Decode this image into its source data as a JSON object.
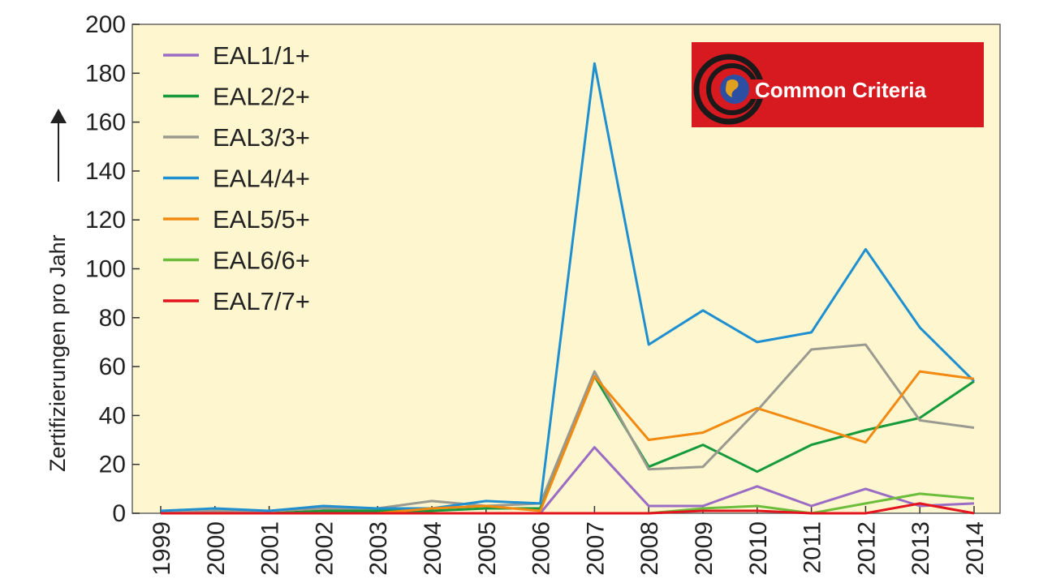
{
  "chart_data": {
    "type": "line",
    "title": "",
    "xlabel": "",
    "ylabel": "Zertifizierungen pro Jahr",
    "ylim": [
      0,
      200
    ],
    "yticks": [
      0,
      20,
      40,
      60,
      80,
      100,
      120,
      140,
      160,
      180,
      200
    ],
    "x": [
      "1999",
      "2000",
      "2001",
      "2002",
      "2003",
      "2004",
      "2005",
      "2006",
      "2007",
      "2008",
      "2009",
      "2010",
      "2011",
      "2012",
      "2013",
      "2014"
    ],
    "grid": false,
    "legend_position": "top-left",
    "background_color": "#fdf6cf",
    "series": [
      {
        "name": "EAL1/1+",
        "color": "#9b6cc4",
        "values": [
          0,
          0,
          0,
          0,
          0,
          0,
          0,
          0,
          27,
          3,
          3,
          11,
          3,
          10,
          3,
          4
        ]
      },
      {
        "name": "EAL2/2+",
        "color": "#159a3c",
        "values": [
          0,
          0,
          0,
          1,
          1,
          1,
          2,
          2,
          56,
          19,
          28,
          17,
          28,
          34,
          39,
          54
        ]
      },
      {
        "name": "EAL3/3+",
        "color": "#9a9a90",
        "values": [
          0,
          1,
          1,
          2,
          2,
          5,
          3,
          4,
          58,
          18,
          19,
          42,
          67,
          69,
          38,
          35
        ]
      },
      {
        "name": "EAL4/4+",
        "color": "#1f8fd0",
        "values": [
          1,
          2,
          1,
          3,
          2,
          2,
          5,
          4,
          184,
          69,
          83,
          70,
          74,
          108,
          76,
          54
        ]
      },
      {
        "name": "EAL5/5+",
        "color": "#f28a12",
        "values": [
          0,
          0,
          0,
          0,
          0,
          2,
          3,
          1,
          56,
          30,
          33,
          43,
          36,
          29,
          58,
          55
        ]
      },
      {
        "name": "EAL6/6+",
        "color": "#6cbd3c",
        "values": [
          0,
          0,
          0,
          0,
          0,
          0,
          0,
          0,
          0,
          0,
          2,
          3,
          0,
          4,
          8,
          6
        ]
      },
      {
        "name": "EAL7/7+",
        "color": "#e3141e",
        "values": [
          0,
          0,
          0,
          0,
          0,
          0,
          0,
          0,
          0,
          0,
          1,
          1,
          0,
          0,
          4,
          0
        ]
      }
    ]
  },
  "logo": {
    "text": "Common Criteria",
    "background": "#d71920",
    "ring_color": "#1a1a1a"
  }
}
